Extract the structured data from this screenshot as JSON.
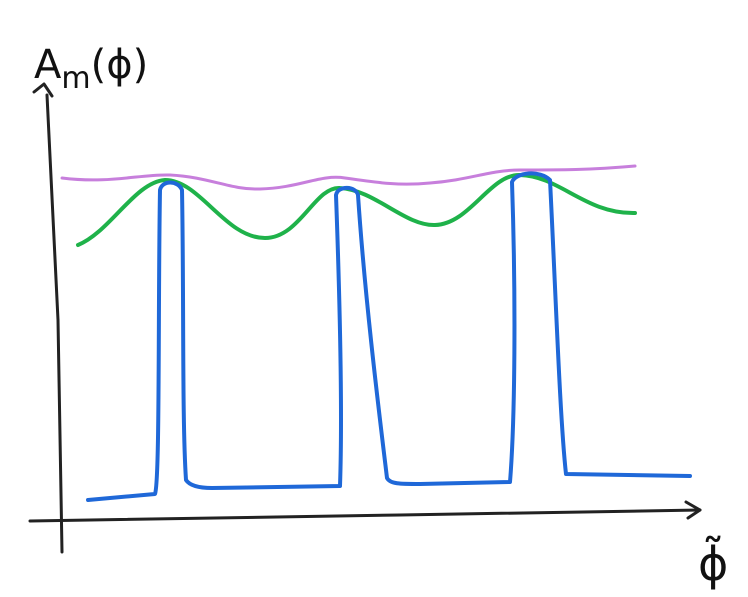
{
  "axes": {
    "y_label": {
      "base": "A",
      "subscript": "m",
      "argument": "(ϕ)"
    },
    "x_label": "ϕ̃"
  }
}
